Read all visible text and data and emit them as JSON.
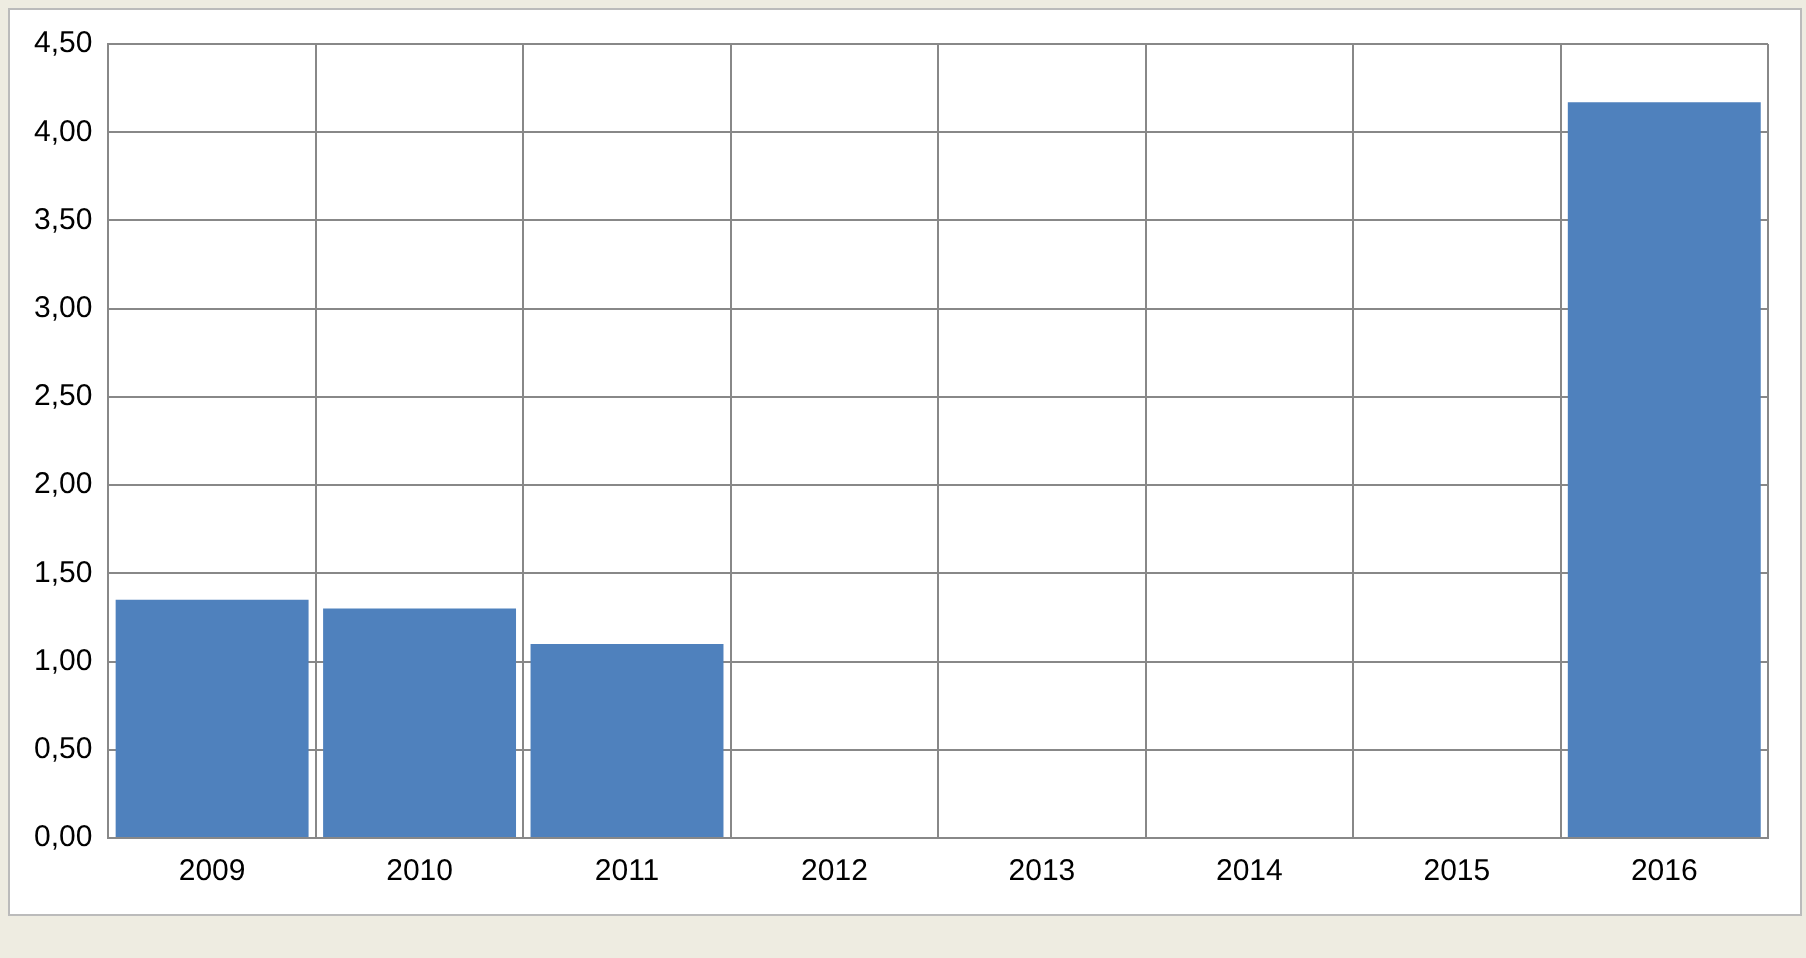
{
  "chart_data": {
    "type": "bar",
    "categories": [
      "2009",
      "2010",
      "2011",
      "2012",
      "2013",
      "2014",
      "2015",
      "2016"
    ],
    "values": [
      1.35,
      1.3,
      1.1,
      null,
      null,
      null,
      null,
      4.17
    ],
    "color": "#4f81bd",
    "ylim": [
      0,
      4.5
    ],
    "yticks": [
      {
        "value": 0,
        "label": "0,00"
      },
      {
        "value": 0.5,
        "label": "0,50"
      },
      {
        "value": 1,
        "label": "1,00"
      },
      {
        "value": 1.5,
        "label": "1,50"
      },
      {
        "value": 2,
        "label": "2,00"
      },
      {
        "value": 2.5,
        "label": "2,50"
      },
      {
        "value": 3,
        "label": "3,00"
      },
      {
        "value": 3.5,
        "label": "3,50"
      },
      {
        "value": 4,
        "label": "4,00"
      },
      {
        "value": 4.5,
        "label": "4,50"
      }
    ],
    "grid": true
  }
}
